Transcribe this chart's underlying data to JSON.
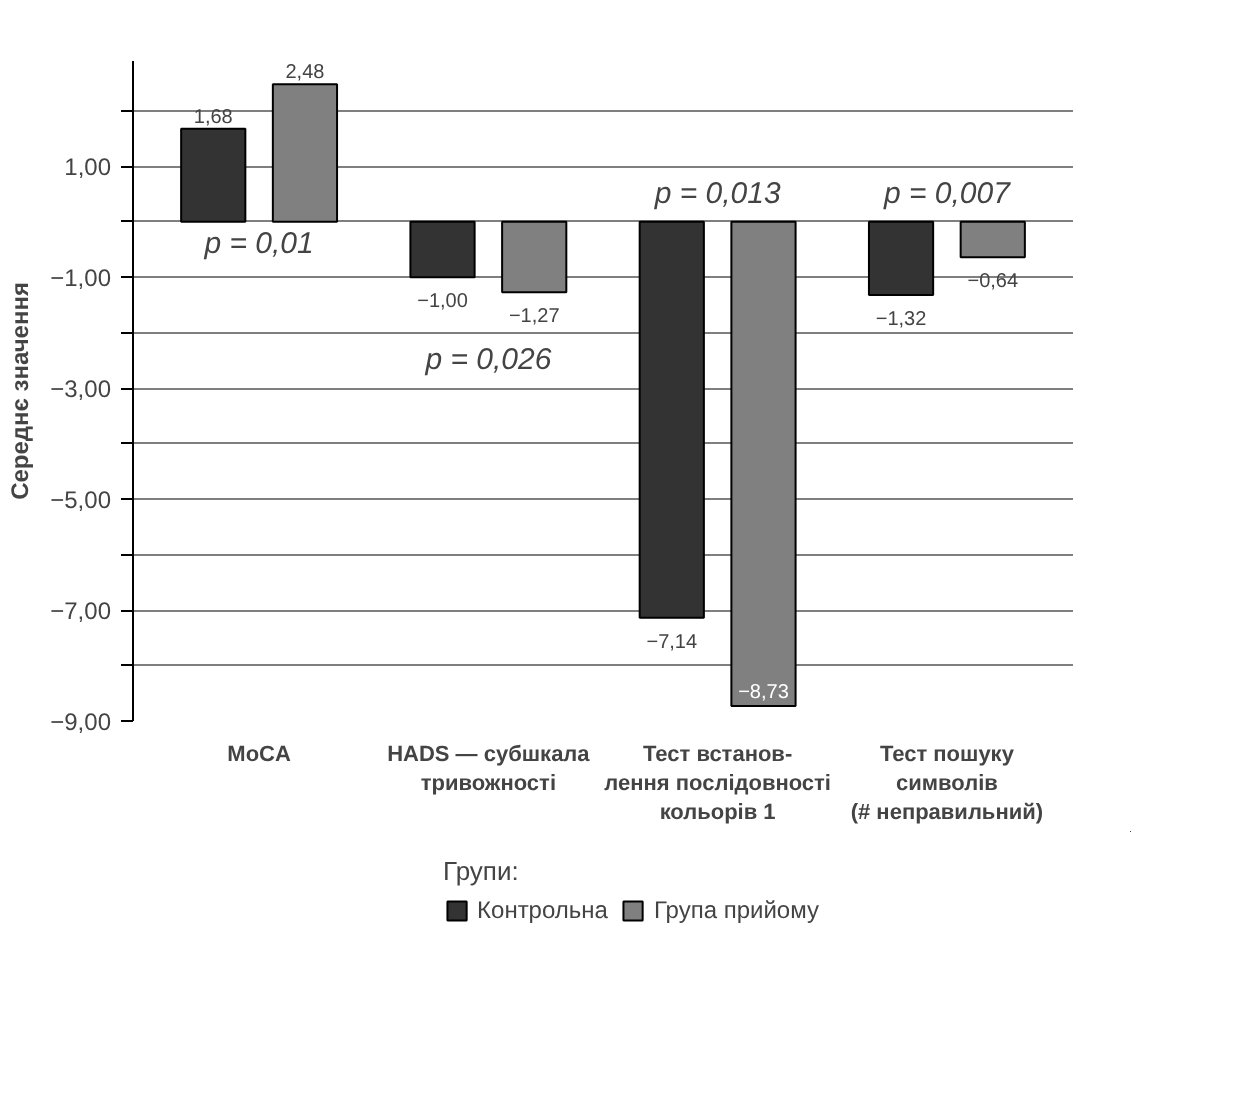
{
  "chart_data": {
    "type": "bar",
    "ylabel": "Середнє значення",
    "legend_title": "Групи:",
    "categories": [
      "MoCA",
      "HADS — субшкала\nтривожності",
      "Тест встанов-\nлення послідовності\nкольорів 1",
      "Тест пошуку\nсимволів\n(# неправильний)"
    ],
    "series": [
      {
        "name": "Контрольна",
        "color": "#333333",
        "values": [
          1.68,
          -1.0,
          -7.14,
          -1.32
        ],
        "value_labels": [
          "1,68",
          "−1,00",
          "−7,14",
          "−1,32"
        ]
      },
      {
        "name": "Група прийому",
        "color": "#808080",
        "values": [
          2.48,
          -1.27,
          -8.73,
          -0.64
        ],
        "value_labels": [
          "2,48",
          "−1,27",
          "−8,73",
          "−0,64"
        ]
      }
    ],
    "ylim": [
      -9.0,
      2.9
    ],
    "yticks": [
      {
        "value": -9,
        "label": "−9,00"
      },
      {
        "value": -8,
        "label": null
      },
      {
        "value": -7,
        "label": "−7,00"
      },
      {
        "value": -6,
        "label": null
      },
      {
        "value": -5,
        "label": "−5,00"
      },
      {
        "value": -4,
        "label": null
      },
      {
        "value": -3,
        "label": "−3,00"
      },
      {
        "value": -2,
        "label": null
      },
      {
        "value": -1,
        "label": "−1,00"
      },
      {
        "value": 0,
        "label": null
      },
      {
        "value": 1,
        "label": "1,00"
      },
      {
        "value": 2,
        "label": null
      }
    ],
    "grid": "y",
    "legend": "bottom",
    "annotations": [
      "p = 0,01",
      "p = 0,026",
      "p = 0,013",
      "p = 0,007"
    ]
  }
}
